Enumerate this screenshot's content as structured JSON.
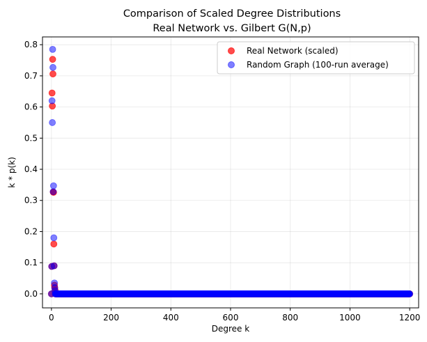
{
  "chart_data": {
    "type": "scatter",
    "title_line1": "Comparison of Scaled Degree Distributions",
    "title_line2": "Real Network vs. Gilbert G(N,p)",
    "xlabel": "Degree k",
    "ylabel": "k * p(k)",
    "xlim": [
      -30,
      1230
    ],
    "ylim": [
      -0.045,
      0.825
    ],
    "xticks": [
      0,
      200,
      400,
      600,
      800,
      1000,
      1200
    ],
    "yticks": [
      0.0,
      0.1,
      0.2,
      0.3,
      0.4,
      0.5,
      0.6,
      0.7,
      0.8
    ],
    "grid": true,
    "legend_position": "top-right",
    "series": [
      {
        "name": "Real Network (scaled)",
        "color": "#ff0000",
        "alpha": 0.7,
        "points": [
          [
            1,
            0.088
          ],
          [
            2,
            0.645
          ],
          [
            3,
            0.603
          ],
          [
            4,
            0.753
          ],
          [
            5,
            0.706
          ],
          [
            6,
            0.327
          ],
          [
            7,
            0.326
          ],
          [
            8,
            0.16
          ],
          [
            9,
            0.09
          ],
          [
            10,
            0.028
          ],
          [
            11,
            0.02
          ],
          [
            12,
            0.012
          ],
          [
            0,
            0.0
          ]
        ],
        "tail_zero_range": [
          13,
          1200
        ]
      },
      {
        "name": "Random Graph (100-run average)",
        "color": "#0000ff",
        "alpha": 0.5,
        "points": [
          [
            0,
            0.0
          ],
          [
            1,
            0.088
          ],
          [
            2,
            0.62
          ],
          [
            3,
            0.55
          ],
          [
            4,
            0.785
          ],
          [
            5,
            0.727
          ],
          [
            6,
            0.328
          ],
          [
            7,
            0.347
          ],
          [
            8,
            0.18
          ],
          [
            9,
            0.09
          ],
          [
            10,
            0.035
          ],
          [
            11,
            0.02
          ],
          [
            12,
            0.01
          ]
        ],
        "tail_zero_range": [
          13,
          1200
        ]
      }
    ]
  }
}
